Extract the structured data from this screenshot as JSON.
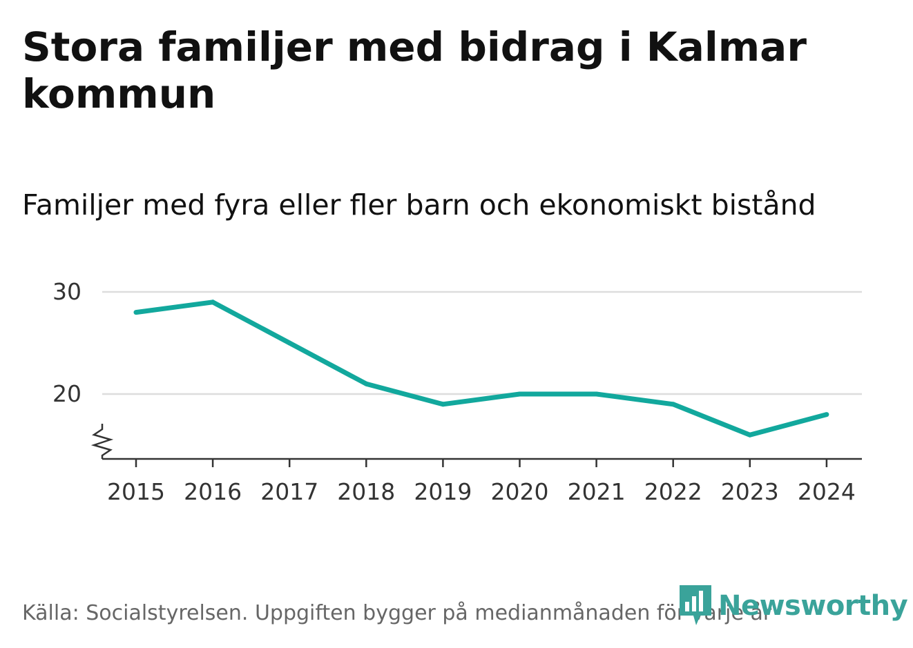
{
  "title": "Stora familjer med bidrag i Kalmar kommun",
  "subtitle": "Familjer med fyra eller fler barn och ekonomiskt bistånd",
  "footer": {
    "source": "Källa: Socialstyrelsen. Uppgiften bygger på medianmånaden för varje år"
  },
  "brand": {
    "name": "Newsworthy",
    "color": "#3aa39a"
  },
  "colors": {
    "line": "#12a89d",
    "grid": "#dddddd",
    "axis": "#333333"
  },
  "chart_data": {
    "type": "line",
    "title": "Stora familjer med bidrag i Kalmar kommun",
    "subtitle": "Familjer med fyra eller fler barn och ekonomiskt bistånd",
    "xlabel": "",
    "ylabel": "",
    "x": [
      "2015",
      "2016",
      "2017",
      "2018",
      "2019",
      "2020",
      "2021",
      "2022",
      "2023",
      "2024"
    ],
    "series": [
      {
        "name": "Familjer med fyra eller fler barn och ekonomiskt bistånd",
        "values": [
          28,
          29,
          25,
          21,
          19,
          20,
          20,
          19,
          16,
          18
        ]
      }
    ],
    "yticks": [
      20,
      30
    ],
    "ylim": [
      13.5,
      30
    ],
    "axis_break": true,
    "grid": true
  }
}
